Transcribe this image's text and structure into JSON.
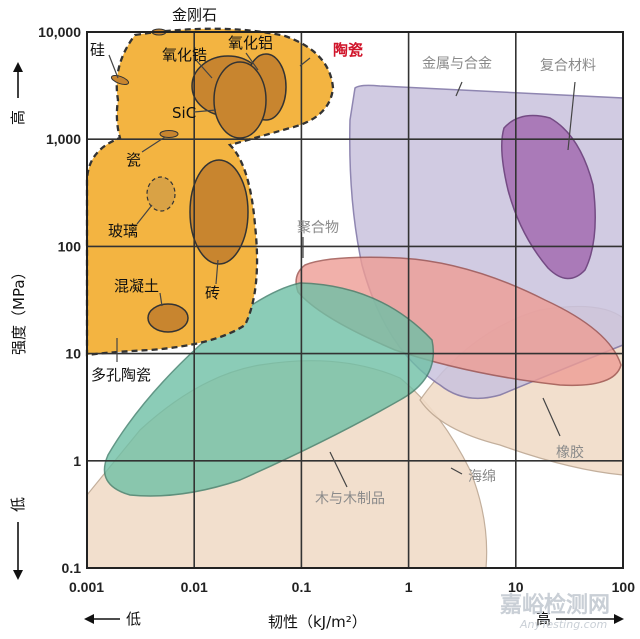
{
  "chart_data": {
    "type": "material-selection-map",
    "xlabel": "韧性（kJ/m²）",
    "ylabel": "强度（MPa）",
    "x_scale": "log",
    "y_scale": "log",
    "xlim": [
      0.001,
      100
    ],
    "ylim": [
      0.1,
      10000
    ],
    "x_ticks": [
      {
        "value": 0.001,
        "label": "0.001"
      },
      {
        "value": 0.01,
        "label": "0.01"
      },
      {
        "value": 0.1,
        "label": "0.1"
      },
      {
        "value": 1,
        "label": "1"
      },
      {
        "value": 10,
        "label": "10"
      },
      {
        "value": 100,
        "label": "100"
      }
    ],
    "y_ticks": [
      {
        "value": 0.1,
        "label": "0.1"
      },
      {
        "value": 1,
        "label": "1"
      },
      {
        "value": 10,
        "label": "10"
      },
      {
        "value": 100,
        "label": "100"
      },
      {
        "value": 1000,
        "label": "1,000"
      },
      {
        "value": 10000,
        "label": "10,000"
      }
    ],
    "grid": true,
    "x_low_label": "低",
    "x_high_label": "高",
    "y_low_label": "低",
    "y_high_label": "高",
    "regions": [
      {
        "name": "陶瓷",
        "color": "#f3b441",
        "x": [
          0.001,
          0.3
        ],
        "y": [
          10,
          10000
        ]
      },
      {
        "name": "金刚石",
        "color": "#c8852f",
        "x": [
          0.008,
          0.008
        ],
        "y": [
          9000,
          9000
        ]
      },
      {
        "name": "硅",
        "color": "#c8852f",
        "x": [
          0.003,
          0.004
        ],
        "y": [
          3500,
          3500
        ]
      },
      {
        "name": "氧化锆",
        "color": "#c8852f",
        "x": [
          0.01,
          0.04
        ],
        "y": [
          1500,
          6000
        ]
      },
      {
        "name": "氧化铝",
        "color": "#c8852f",
        "x": [
          0.04,
          0.09
        ],
        "y": [
          2500,
          8000
        ]
      },
      {
        "name": "SiC",
        "color": "#c8852f",
        "x": [
          0.025,
          0.06
        ],
        "y": [
          1000,
          5500
        ]
      },
      {
        "name": "瓷",
        "color": "#c8852f",
        "x": [
          0.006,
          0.008
        ],
        "y": [
          1100,
          1100
        ]
      },
      {
        "name": "玻璃",
        "color": "#c8852f",
        "x": [
          0.005,
          0.007
        ],
        "y": [
          300,
          600
        ]
      },
      {
        "name": "砖",
        "color": "#c8852f",
        "x": [
          0.016,
          0.03
        ],
        "y": [
          60,
          750
        ]
      },
      {
        "name": "混凝土",
        "color": "#c8852f",
        "x": [
          0.006,
          0.009
        ],
        "y": [
          15,
          25
        ]
      },
      {
        "name": "多孔陶瓷",
        "color": "#f3b441",
        "x": [
          0.001,
          0.001
        ],
        "y": [
          10,
          10
        ]
      },
      {
        "name": "金属与合金",
        "color": "#c6bfdc",
        "x": [
          0.5,
          100
        ],
        "y": [
          4,
          3000
        ]
      },
      {
        "name": "复合材料",
        "color": "#a672b4",
        "x": [
          10,
          40
        ],
        "y": [
          80,
          1500
        ]
      },
      {
        "name": "聚合物",
        "color": "#ec9b93",
        "x": [
          0.1,
          80
        ],
        "y": [
          8,
          90
        ]
      },
      {
        "name": "橡胶",
        "color": "#f1ddca",
        "x": [
          1,
          100
        ],
        "y": [
          2,
          50
        ]
      },
      {
        "name": "海绵",
        "color": "#f1ddca",
        "x": [
          0.001,
          5
        ],
        "y": [
          0.1,
          10
        ]
      },
      {
        "name": "木与木制品",
        "color": "#6dbfa5",
        "x": [
          0.002,
          1
        ],
        "y": [
          0.4,
          60
        ]
      }
    ]
  },
  "watermark": {
    "main": "嘉峪检测网",
    "sub": "AnyTesting.com"
  }
}
